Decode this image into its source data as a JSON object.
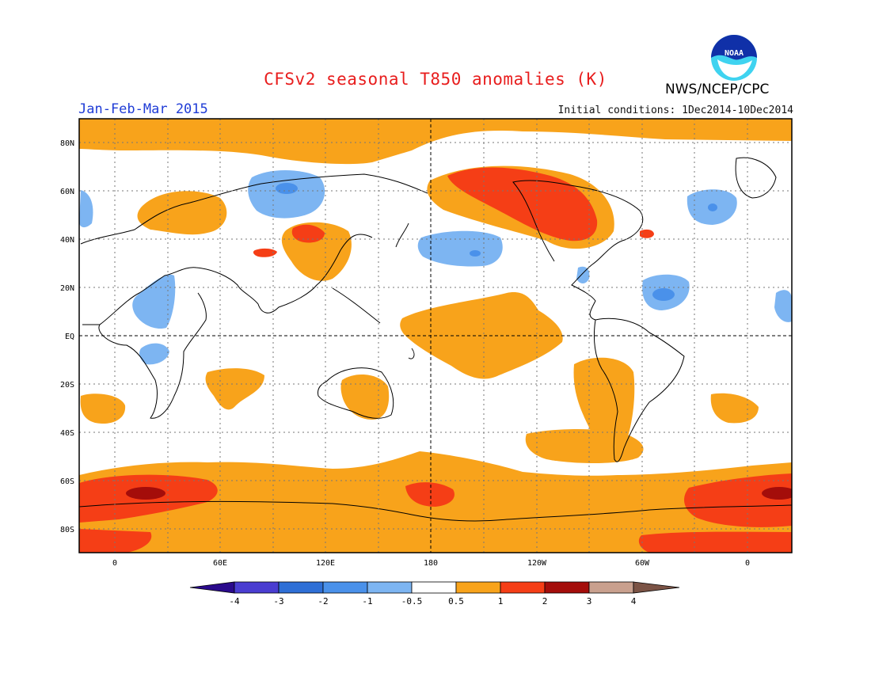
{
  "title": "CFSv2 seasonal T850 anomalies (K)",
  "agency": "NWS/NCEP/CPC",
  "logo_text": "NOAA",
  "period": "Jan-Feb-Mar 2015",
  "initial_conditions": "Initial conditions: 1Dec2014-10Dec2014",
  "lat_labels": [
    "80N",
    "60N",
    "40N",
    "20N",
    "EQ",
    "20S",
    "40S",
    "60S",
    "80S"
  ],
  "lon_labels": [
    "0",
    "60E",
    "120E",
    "180",
    "120W",
    "60W",
    "0"
  ],
  "colorbar": {
    "labels": [
      "-4",
      "-3",
      "-2",
      "-1",
      "-0.5",
      "0.5",
      "1",
      "2",
      "3",
      "4"
    ],
    "colors": [
      "#2a0a8c",
      "#4a3dd1",
      "#2e6fd6",
      "#4a91ea",
      "#7db5f2",
      "#ffffff",
      "#f8a31b",
      "#f53e16",
      "#a40d0a",
      "#c9a08e",
      "#7b5345"
    ]
  },
  "colors": {
    "warm1": "#f8a31b",
    "warm2": "#f53e16",
    "warm3": "#a40d0a",
    "cool1": "#7db5f2",
    "cool2": "#4a91ea"
  }
}
